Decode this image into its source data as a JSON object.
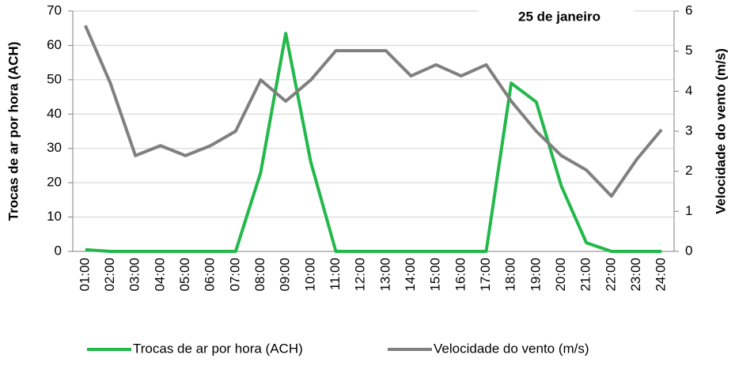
{
  "chart_data": {
    "type": "line",
    "annotation": "25 de janeiro",
    "y_label": "Trocas de ar por hora (ACH)",
    "y2_label": "Velocidade do vento (m/s)",
    "categories": [
      "01:00",
      "02:00",
      "03:00",
      "04:00",
      "05:00",
      "06:00",
      "07:00",
      "08:00",
      "09:00",
      "10:00",
      "11:00",
      "12:00",
      "13:00",
      "14:00",
      "15:00",
      "16:00",
      "17:00",
      "18:00",
      "19:00",
      "20:00",
      "21:00",
      "22:00",
      "23:00",
      "24:00"
    ],
    "series": [
      {
        "name": "Trocas de ar por hora (ACH)",
        "color": "#22b84a",
        "values": [
          0.5,
          0,
          0,
          0,
          0,
          0,
          0,
          23,
          63.5,
          26,
          0,
          0,
          0,
          0,
          0,
          0,
          0,
          49,
          43.5,
          19,
          2.5,
          0,
          0,
          0
        ]
      },
      {
        "name": "Velocidade do vento (m/s)",
        "color": "#808080",
        "axis": "y2",
        "values": [
          5.64,
          4.2,
          2.39,
          2.64,
          2.39,
          2.64,
          3.0,
          4.28,
          3.75,
          4.28,
          5.01,
          5.01,
          5.01,
          4.38,
          4.66,
          4.38,
          4.66,
          3.75,
          3.0,
          2.39,
          2.03,
          1.38,
          2.29,
          3.04
        ]
      }
    ],
    "ylim": [
      0,
      70
    ],
    "yticks": [
      0,
      10,
      20,
      30,
      40,
      50,
      60,
      70
    ],
    "y2lim": [
      0,
      6
    ],
    "y2ticks": [
      0,
      1,
      2,
      3,
      4,
      5,
      6
    ],
    "grid": true,
    "legend": "bottom"
  }
}
